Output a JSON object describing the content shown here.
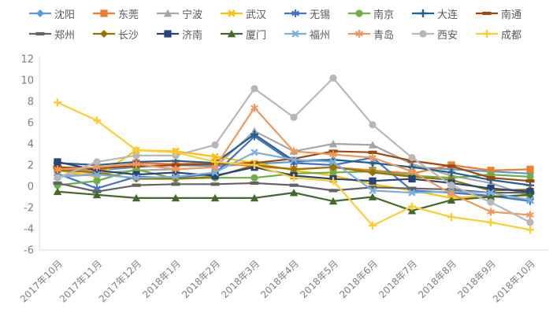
{
  "chart_data": {
    "type": "line",
    "title": "",
    "xlabel": "",
    "ylabel": "",
    "categories": [
      "2017年10月",
      "2017年11月",
      "2017年12月",
      "2018年1月",
      "2018年2月",
      "2018年3月",
      "2018年4月",
      "2018年5月",
      "2018年6月",
      "2018年7月",
      "2018年8月",
      "2018年9月",
      "2018年10月"
    ],
    "ylim": [
      -6,
      12
    ],
    "yticks": [
      12,
      10,
      8,
      6,
      4,
      2,
      0,
      -2,
      -4,
      -6
    ],
    "grid": false,
    "legend_position": "top",
    "axis_color": "#d9d9d9",
    "tick_label_color": "#7f7f7f",
    "legend_text_color": "#595959",
    "series": [
      {
        "name": "沈阳",
        "id": "shenyang",
        "color": "#5B9BD5",
        "marker": "diamond",
        "values": [
          1.6,
          1.5,
          1.8,
          2.0,
          1.9,
          2.1,
          2.3,
          2.5,
          2.2,
          1.8,
          1.6,
          1.4,
          1.2
        ]
      },
      {
        "name": "东莞",
        "id": "dongguan",
        "color": "#ED7D31",
        "marker": "square",
        "values": [
          1.7,
          1.5,
          2.2,
          2.1,
          2.2,
          1.9,
          1.6,
          1.8,
          1.5,
          1.2,
          2.0,
          1.5,
          1.6
        ]
      },
      {
        "name": "宁波",
        "id": "ningbo",
        "color": "#A5A5A5",
        "marker": "triangle",
        "values": [
          1.0,
          1.2,
          1.5,
          1.6,
          1.8,
          5.2,
          3.3,
          4.0,
          3.9,
          2.1,
          1.0,
          0.3,
          -0.9
        ]
      },
      {
        "name": "武汉",
        "id": "wuhan",
        "color": "#FFC000",
        "marker": "x",
        "values": [
          1.5,
          0.9,
          3.4,
          3.3,
          2.8,
          2.2,
          1.5,
          1.0,
          0.2,
          -0.4,
          -1.1,
          -0.9,
          -0.9
        ]
      },
      {
        "name": "无锡",
        "id": "wuxi",
        "color": "#4472C4",
        "marker": "asterisk",
        "values": [
          1.2,
          -0.2,
          0.9,
          0.8,
          1.2,
          4.7,
          2.2,
          2.0,
          2.7,
          -0.4,
          -0.6,
          -0.9,
          -1.4
        ]
      },
      {
        "name": "南京",
        "id": "nanjing",
        "color": "#70AD47",
        "marker": "circle",
        "values": [
          0.1,
          0.5,
          1.6,
          0.7,
          0.8,
          0.8,
          1.2,
          1.3,
          1.4,
          1.0,
          0.8,
          1.1,
          0.9
        ]
      },
      {
        "name": "大连",
        "id": "dalian",
        "color": "#255E91",
        "marker": "plus",
        "values": [
          2.2,
          2.0,
          2.3,
          2.4,
          2.2,
          4.9,
          2.4,
          2.5,
          2.2,
          1.8,
          1.3,
          0.6,
          0.1
        ]
      },
      {
        "name": "南通",
        "id": "nantong",
        "color": "#9E480E",
        "marker": "dash",
        "values": [
          1.8,
          1.7,
          1.9,
          2.0,
          2.1,
          2.2,
          2.6,
          3.3,
          3.2,
          2.4,
          1.9,
          0.8,
          0.5
        ]
      },
      {
        "name": "郑州",
        "id": "zhengzhou",
        "color": "#636363",
        "marker": "dash",
        "values": [
          0.3,
          -0.5,
          0.1,
          0.2,
          0.2,
          0.3,
          0.1,
          -0.4,
          -0.1,
          -0.2,
          -0.3,
          -0.6,
          -0.6
        ]
      },
      {
        "name": "长沙",
        "id": "changsha",
        "color": "#997300",
        "marker": "diamond",
        "values": [
          1.5,
          1.3,
          0.7,
          0.7,
          0.9,
          2.0,
          1.6,
          1.8,
          1.3,
          0.9,
          0.6,
          -0.4,
          -0.3
        ]
      },
      {
        "name": "济南",
        "id": "jinan",
        "color": "#264478",
        "marker": "square",
        "values": [
          2.3,
          1.5,
          1.1,
          1.3,
          1.0,
          1.8,
          1.0,
          0.7,
          0.5,
          0.7,
          0.3,
          -0.2,
          -0.5
        ]
      },
      {
        "name": "厦门",
        "id": "xiamen",
        "color": "#43682B",
        "marker": "triangle",
        "values": [
          -0.5,
          -0.8,
          -1.1,
          -1.1,
          -1.1,
          -1.1,
          -0.6,
          -1.4,
          -1.0,
          -2.3,
          -1.3,
          -1.0,
          -0.8
        ]
      },
      {
        "name": "福州",
        "id": "fuzhou",
        "color": "#7CAFDD",
        "marker": "x",
        "values": [
          0.9,
          1.1,
          0.8,
          0.9,
          1.3,
          3.2,
          2.5,
          2.3,
          -0.4,
          -0.6,
          -0.5,
          -0.6,
          -1.3
        ]
      },
      {
        "name": "青岛",
        "id": "qingdao",
        "color": "#F1975A",
        "marker": "asterisk",
        "values": [
          1.6,
          1.8,
          2.1,
          1.6,
          1.8,
          7.4,
          3.3,
          3.0,
          2.7,
          1.4,
          -0.7,
          -2.4,
          -2.7
        ]
      },
      {
        "name": "西安",
        "id": "xian",
        "color": "#B7B7B7",
        "marker": "circle",
        "values": [
          0.8,
          2.3,
          2.9,
          2.9,
          3.9,
          9.2,
          6.5,
          10.2,
          5.8,
          2.7,
          0.1,
          -1.5,
          -3.4
        ]
      },
      {
        "name": "成都",
        "id": "chengdu",
        "color": "#FFCD33",
        "marker": "plus",
        "values": [
          7.9,
          6.2,
          3.4,
          3.2,
          2.3,
          2.0,
          0.8,
          0.5,
          -3.7,
          -1.9,
          -2.9,
          -3.4,
          -4.1
        ]
      }
    ]
  }
}
